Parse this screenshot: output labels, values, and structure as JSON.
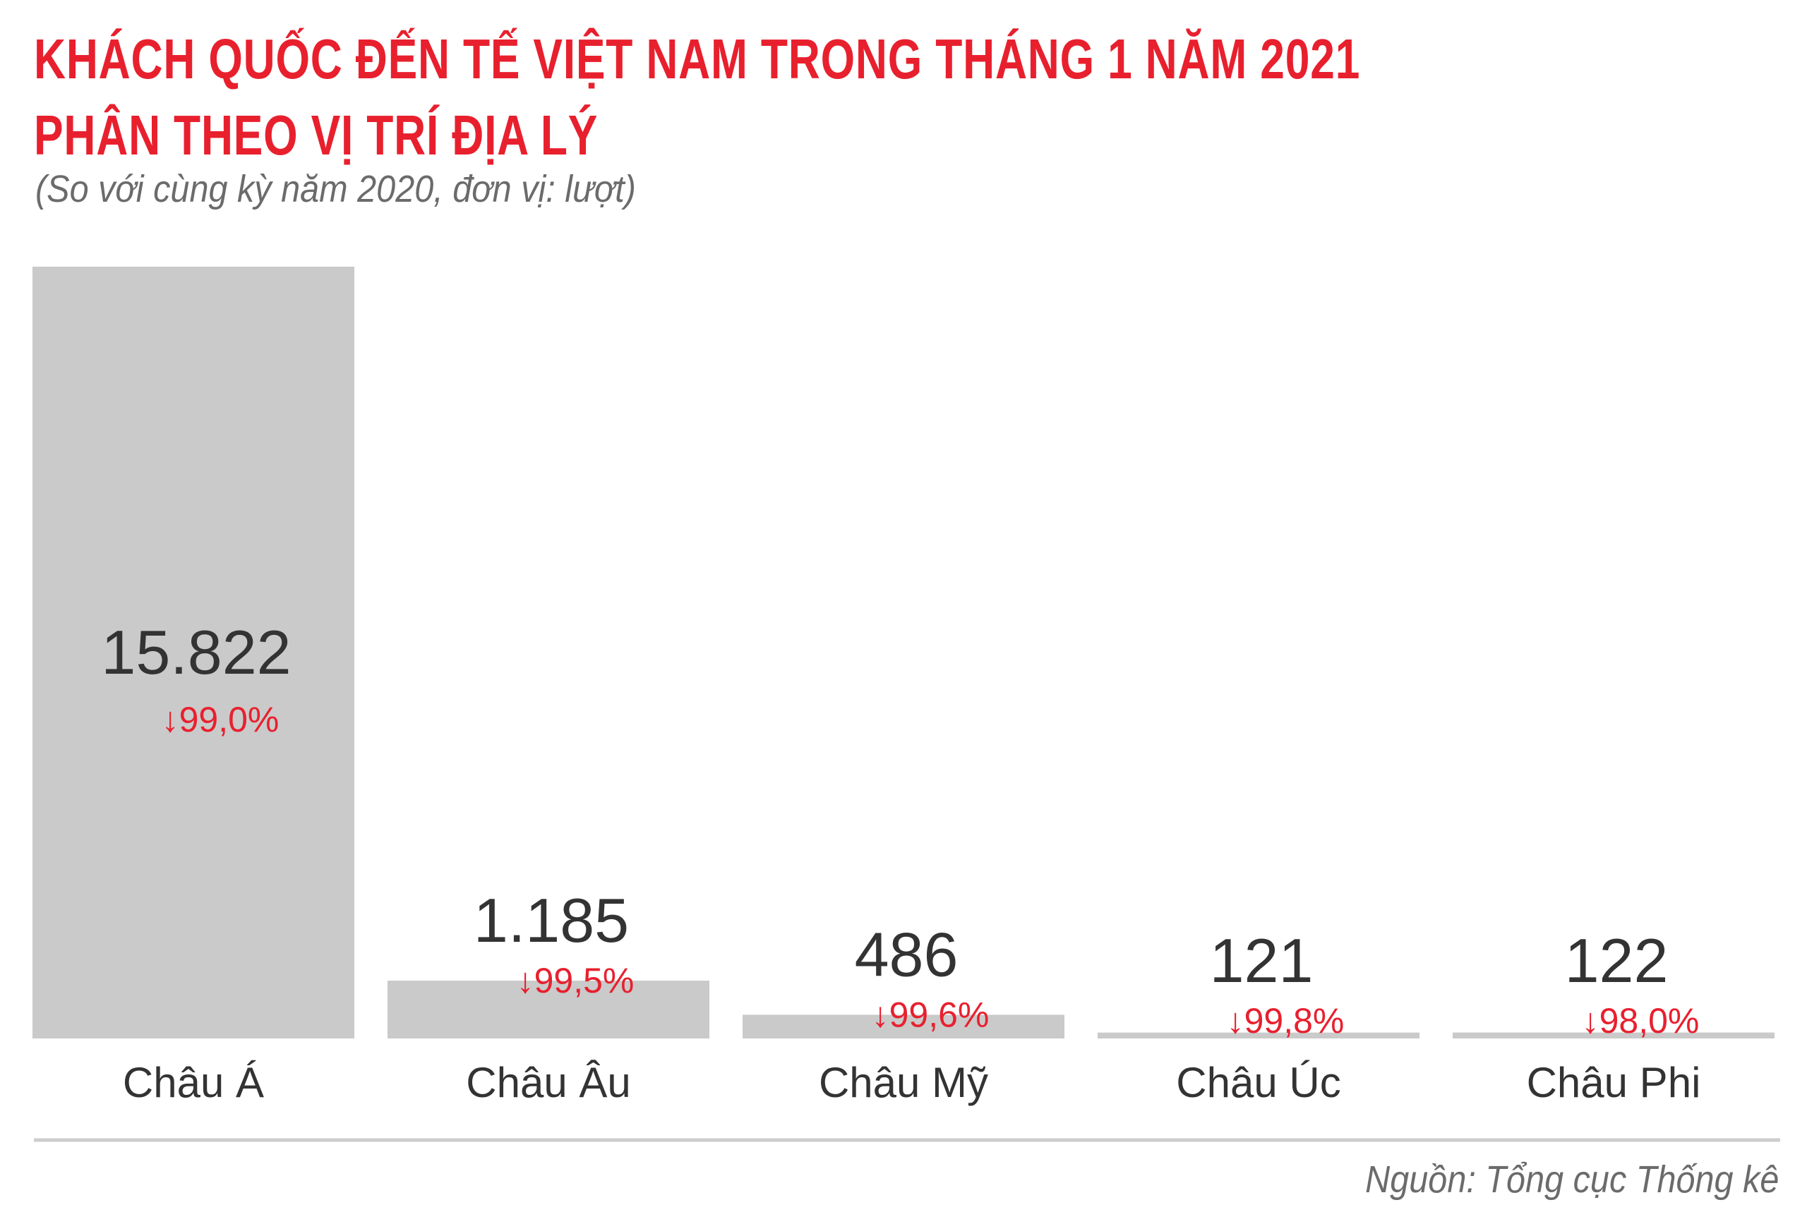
{
  "title_line1": "KHÁCH QUỐC ĐẾN TẾ VIỆT NAM TRONG THÁNG 1 NĂM 2021",
  "title_line2": "PHÂN THEO VỊ TRÍ ĐỊA LÝ",
  "subtitle": "(So với cùng kỳ năm 2020, đơn vị: lượt)",
  "source": "Nguồn: Tổng cục Thống kê",
  "colors": {
    "title": "#e8202e",
    "bar": "#cacaca",
    "value_text": "#333333",
    "change_text": "#e8202e",
    "category_text": "#333333",
    "axis_line": "#cccccc",
    "muted_text": "#6b6b6b"
  },
  "chart_data": {
    "type": "bar",
    "title": "KHÁCH QUỐC ĐẾN TẾ VIỆT NAM TRONG THÁNG 1 NĂM 2021 PHÂN THEO VỊ TRÍ ĐỊA LÝ",
    "subtitle": "(So với cùng kỳ năm 2020, đơn vị: lượt)",
    "categories": [
      "Châu Á",
      "Châu Âu",
      "Châu Mỹ",
      "Châu Úc",
      "Châu Phi"
    ],
    "values": [
      15822,
      1185,
      486,
      121,
      122
    ],
    "value_labels": [
      "15.822",
      "1.185",
      "486",
      "121",
      "122"
    ],
    "change_labels": [
      "99,0%",
      "99,5%",
      "99,6%",
      "99,8%",
      "98,0%"
    ],
    "change_direction": [
      "down",
      "down",
      "down",
      "down",
      "down"
    ],
    "xlabel": "",
    "ylabel": "",
    "ylim": [
      0,
      15822
    ],
    "grid": false,
    "legend": "none"
  }
}
